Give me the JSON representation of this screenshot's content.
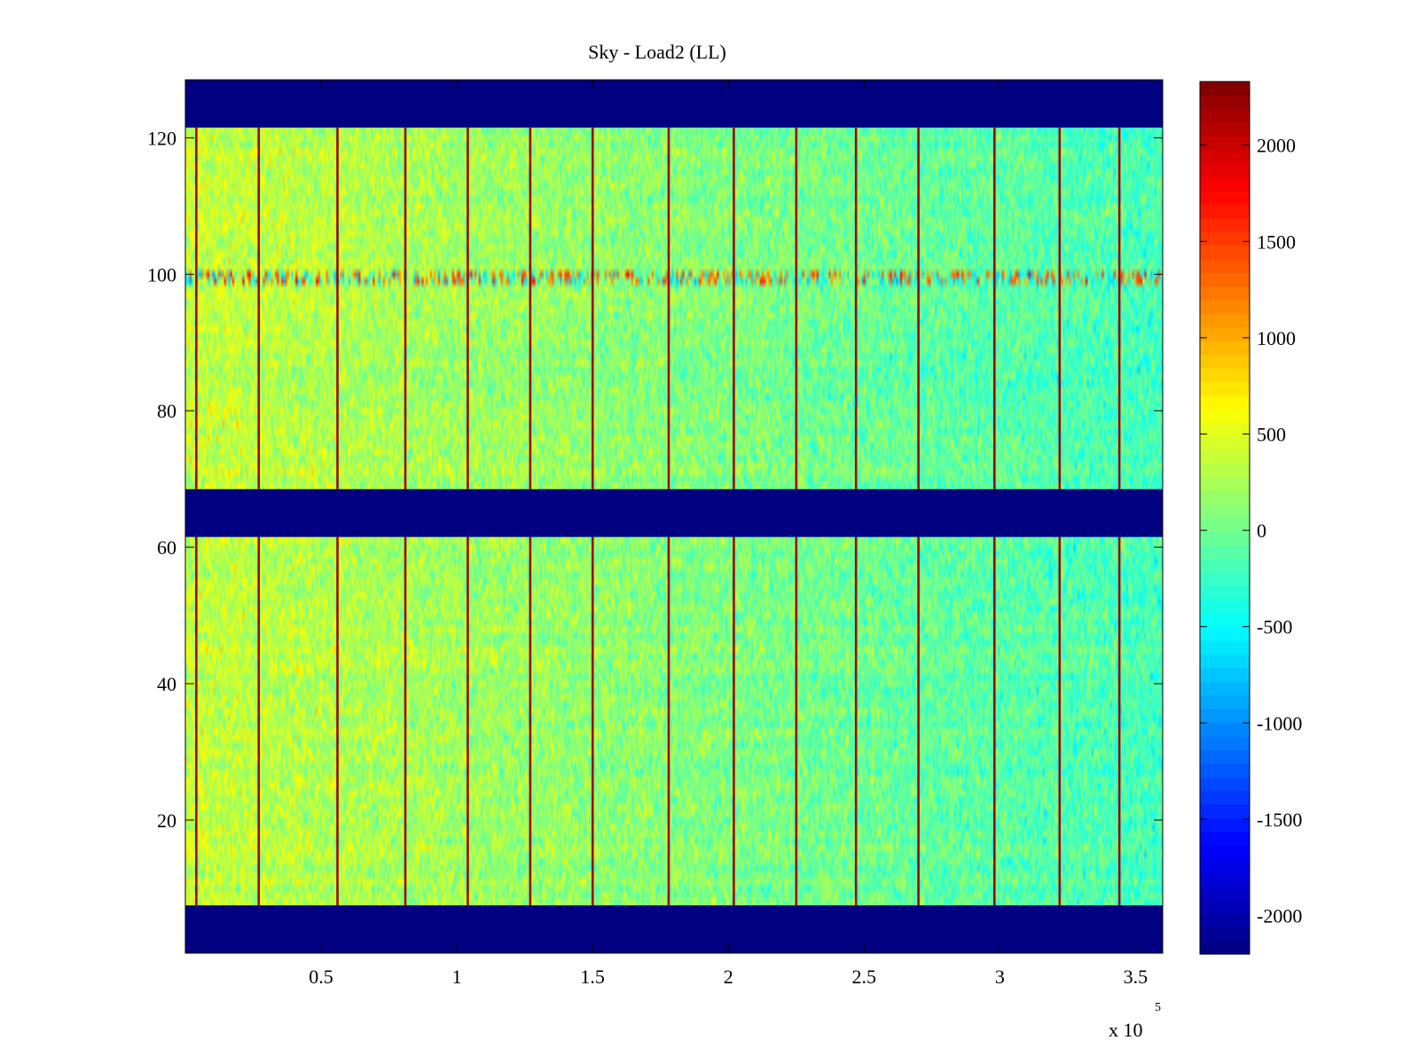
{
  "chart_data": {
    "type": "heatmap",
    "title": "Sky - Load2 (LL)",
    "xlabel": "",
    "ylabel": "",
    "x_multiplier": {
      "base": "x 10",
      "exponent": "5"
    },
    "xlim": [
      0,
      3.6
    ],
    "ylim": [
      0.5,
      128.5
    ],
    "x_ticks": [
      {
        "value": 0.5,
        "label": "0.5"
      },
      {
        "value": 1,
        "label": "1"
      },
      {
        "value": 1.5,
        "label": "1.5"
      },
      {
        "value": 2,
        "label": "2"
      },
      {
        "value": 2.5,
        "label": "2.5"
      },
      {
        "value": 3,
        "label": "3"
      },
      {
        "value": 3.5,
        "label": "3.5"
      }
    ],
    "y_ticks": [
      {
        "value": 20,
        "label": "20"
      },
      {
        "value": 40,
        "label": "40"
      },
      {
        "value": 60,
        "label": "60"
      },
      {
        "value": 80,
        "label": "80"
      },
      {
        "value": 100,
        "label": "100"
      },
      {
        "value": 120,
        "label": "120"
      }
    ],
    "colorbar": {
      "colormap": "jet",
      "clim": [
        -2200,
        2330
      ],
      "ticks": [
        {
          "value": 2000,
          "label": "2000"
        },
        {
          "value": 1500,
          "label": "1500"
        },
        {
          "value": 1000,
          "label": "1000"
        },
        {
          "value": 500,
          "label": "500"
        },
        {
          "value": 0,
          "label": "0"
        },
        {
          "value": -500,
          "label": "-500"
        },
        {
          "value": -1000,
          "label": "-1000"
        },
        {
          "value": -1500,
          "label": "-1500"
        },
        {
          "value": -2000,
          "label": "-2000"
        }
      ]
    },
    "masked_row_bands": [
      {
        "from": 0.5,
        "to": 7.5,
        "value": -2200
      },
      {
        "from": 61.5,
        "to": 68.5,
        "value": -2200
      },
      {
        "from": 121.5,
        "to": 128.5,
        "value": -2200
      }
    ],
    "data_row_bands": [
      {
        "from": 7.5,
        "to": 61.5
      },
      {
        "from": 68.5,
        "to": 121.5
      }
    ],
    "background_level": {
      "left_value": 380,
      "right_value": -200
    },
    "hot_row_band": {
      "from": 98.5,
      "to": 100.5,
      "value": 1300
    },
    "spike_columns": [
      0.04,
      0.27,
      0.56,
      0.81,
      1.04,
      1.27,
      1.5,
      1.78,
      2.02,
      2.25,
      2.47,
      2.7,
      2.98,
      3.22,
      3.44
    ]
  }
}
